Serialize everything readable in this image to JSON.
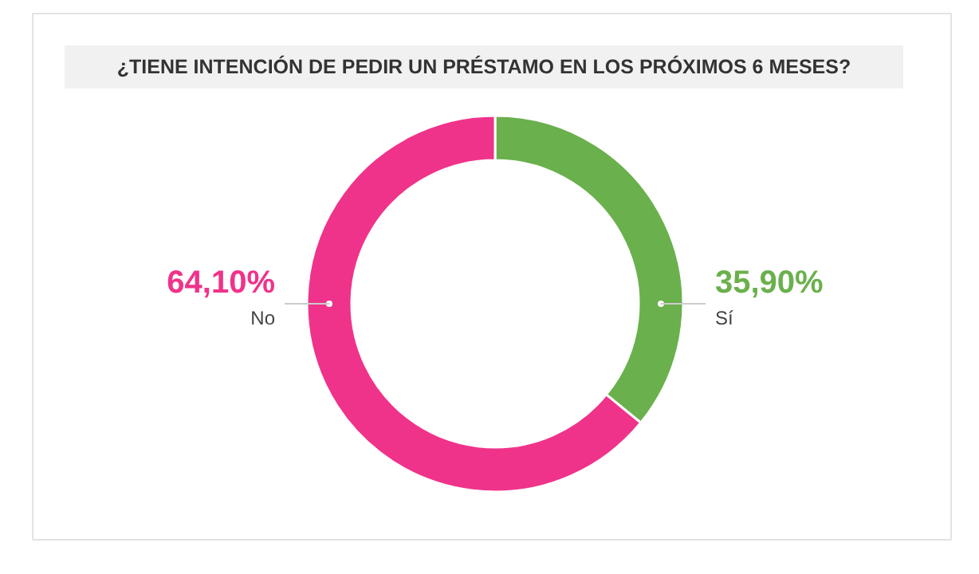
{
  "chart_data": {
    "type": "donut",
    "title": "¿TIENE INTENCIÓN DE PEDIR UN PRÉSTAMO EN LOS PRÓXIMOS 6 MESES?",
    "categories": [
      "Sí",
      "No"
    ],
    "values": [
      35.9,
      64.1
    ],
    "colors": [
      "#6ab04c",
      "#f0338a"
    ],
    "value_labels": [
      "35,90%",
      "64,10%"
    ]
  }
}
